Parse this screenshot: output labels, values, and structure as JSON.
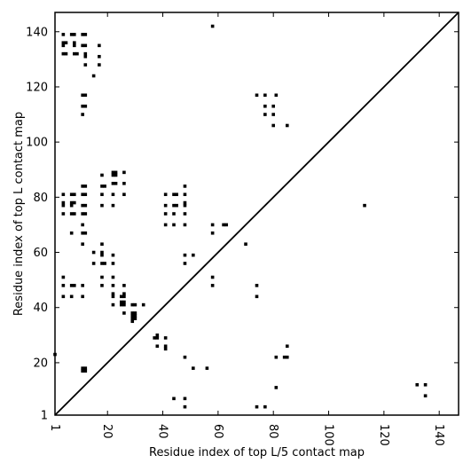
{
  "chart_data": {
    "type": "scatter",
    "title": "",
    "xlabel": "Residue index of top L/5 contact map",
    "ylabel": "Residue index of top L contact map",
    "xlim": [
      1,
      147
    ],
    "ylim": [
      1,
      147
    ],
    "grid": false,
    "xticks": [
      1,
      20,
      40,
      60,
      80,
      100,
      120,
      140
    ],
    "yticks": [
      1,
      20,
      40,
      60,
      80,
      100,
      120,
      140
    ],
    "diagonal": {
      "from": [
        1,
        1
      ],
      "to": [
        147,
        147
      ]
    },
    "series": [
      {
        "marker": "square",
        "color": "#000000",
        "points": [
          [
            4,
            139
          ],
          [
            4,
            136
          ],
          [
            4,
            135
          ],
          [
            5,
            136
          ],
          [
            4,
            132
          ],
          [
            5,
            132
          ],
          [
            7,
            139
          ],
          [
            8,
            139
          ],
          [
            8,
            136
          ],
          [
            8,
            135
          ],
          [
            8,
            132
          ],
          [
            9,
            132
          ],
          [
            11,
            139
          ],
          [
            12,
            139
          ],
          [
            11,
            135
          ],
          [
            12,
            135
          ],
          [
            12,
            132
          ],
          [
            12,
            131
          ],
          [
            12,
            128
          ],
          [
            17,
            135
          ],
          [
            17,
            131
          ],
          [
            17,
            128
          ],
          [
            15,
            124
          ],
          [
            11,
            117
          ],
          [
            12,
            117
          ],
          [
            11,
            113
          ],
          [
            12,
            113
          ],
          [
            11,
            110
          ],
          [
            58,
            142
          ],
          [
            4,
            81
          ],
          [
            4,
            78
          ],
          [
            4,
            77
          ],
          [
            4,
            74
          ],
          [
            7,
            81
          ],
          [
            8,
            81
          ],
          [
            7,
            78
          ],
          [
            8,
            78
          ],
          [
            7,
            77
          ],
          [
            7,
            74
          ],
          [
            8,
            74
          ],
          [
            11,
            84
          ],
          [
            12,
            84
          ],
          [
            11,
            81
          ],
          [
            12,
            81
          ],
          [
            11,
            77
          ],
          [
            12,
            77
          ],
          [
            11,
            74
          ],
          [
            12,
            74
          ],
          [
            11,
            70
          ],
          [
            11,
            67
          ],
          [
            12,
            67
          ],
          [
            7,
            67
          ],
          [
            11,
            63
          ],
          [
            18,
            88
          ],
          [
            18,
            84
          ],
          [
            19,
            84
          ],
          [
            18,
            81
          ],
          [
            18,
            77
          ],
          [
            22,
            89
          ],
          [
            23,
            89
          ],
          [
            22,
            88
          ],
          [
            23,
            88
          ],
          [
            22,
            85
          ],
          [
            23,
            85
          ],
          [
            22,
            81
          ],
          [
            22,
            77
          ],
          [
            26,
            89
          ],
          [
            26,
            85
          ],
          [
            26,
            81
          ],
          [
            41,
            81
          ],
          [
            44,
            81
          ],
          [
            45,
            81
          ],
          [
            48,
            84
          ],
          [
            48,
            81
          ],
          [
            41,
            77
          ],
          [
            44,
            77
          ],
          [
            45,
            77
          ],
          [
            48,
            78
          ],
          [
            48,
            77
          ],
          [
            41,
            74
          ],
          [
            44,
            74
          ],
          [
            48,
            74
          ],
          [
            41,
            70
          ],
          [
            44,
            70
          ],
          [
            48,
            70
          ],
          [
            58,
            70
          ],
          [
            58,
            67
          ],
          [
            62,
            70
          ],
          [
            63,
            70
          ],
          [
            70,
            63
          ],
          [
            15,
            60
          ],
          [
            18,
            60
          ],
          [
            18,
            59
          ],
          [
            22,
            59
          ],
          [
            15,
            56
          ],
          [
            18,
            56
          ],
          [
            19,
            56
          ],
          [
            22,
            56
          ],
          [
            18,
            63
          ],
          [
            48,
            59
          ],
          [
            51,
            59
          ],
          [
            48,
            56
          ],
          [
            4,
            51
          ],
          [
            4,
            48
          ],
          [
            7,
            48
          ],
          [
            8,
            48
          ],
          [
            4,
            44
          ],
          [
            7,
            44
          ],
          [
            11,
            48
          ],
          [
            11,
            44
          ],
          [
            18,
            51
          ],
          [
            18,
            48
          ],
          [
            22,
            51
          ],
          [
            22,
            48
          ],
          [
            22,
            45
          ],
          [
            22,
            44
          ],
          [
            22,
            41
          ],
          [
            26,
            48
          ],
          [
            25,
            44
          ],
          [
            26,
            45
          ],
          [
            26,
            44
          ],
          [
            25,
            42
          ],
          [
            26,
            42
          ],
          [
            25,
            41
          ],
          [
            26,
            41
          ],
          [
            29,
            41
          ],
          [
            30,
            41
          ],
          [
            33,
            41
          ],
          [
            26,
            38
          ],
          [
            29,
            38
          ],
          [
            30,
            38
          ],
          [
            29,
            37
          ],
          [
            30,
            37
          ],
          [
            29,
            36
          ],
          [
            30,
            36
          ],
          [
            29,
            35
          ],
          [
            58,
            51
          ],
          [
            58,
            48
          ],
          [
            74,
            48
          ],
          [
            74,
            44
          ],
          [
            37,
            29
          ],
          [
            38,
            29
          ],
          [
            38,
            30
          ],
          [
            41,
            29
          ],
          [
            38,
            26
          ],
          [
            41,
            26
          ],
          [
            41,
            25
          ],
          [
            48,
            22
          ],
          [
            51,
            18
          ],
          [
            56,
            18
          ],
          [
            81,
            22
          ],
          [
            84,
            22
          ],
          [
            85,
            22
          ],
          [
            85,
            26
          ],
          [
            81,
            11
          ],
          [
            44,
            7
          ],
          [
            48,
            7
          ],
          [
            48,
            4
          ],
          [
            74,
            4
          ],
          [
            77,
            4
          ],
          [
            11,
            18
          ],
          [
            11,
            17
          ],
          [
            12,
            18
          ],
          [
            12,
            17
          ],
          [
            1,
            23
          ],
          [
            74,
            117
          ],
          [
            77,
            117
          ],
          [
            81,
            117
          ],
          [
            77,
            113
          ],
          [
            80,
            113
          ],
          [
            77,
            110
          ],
          [
            80,
            110
          ],
          [
            80,
            106
          ],
          [
            85,
            106
          ],
          [
            113,
            77
          ],
          [
            132,
            12
          ],
          [
            135,
            12
          ],
          [
            135,
            8
          ]
        ]
      }
    ]
  }
}
